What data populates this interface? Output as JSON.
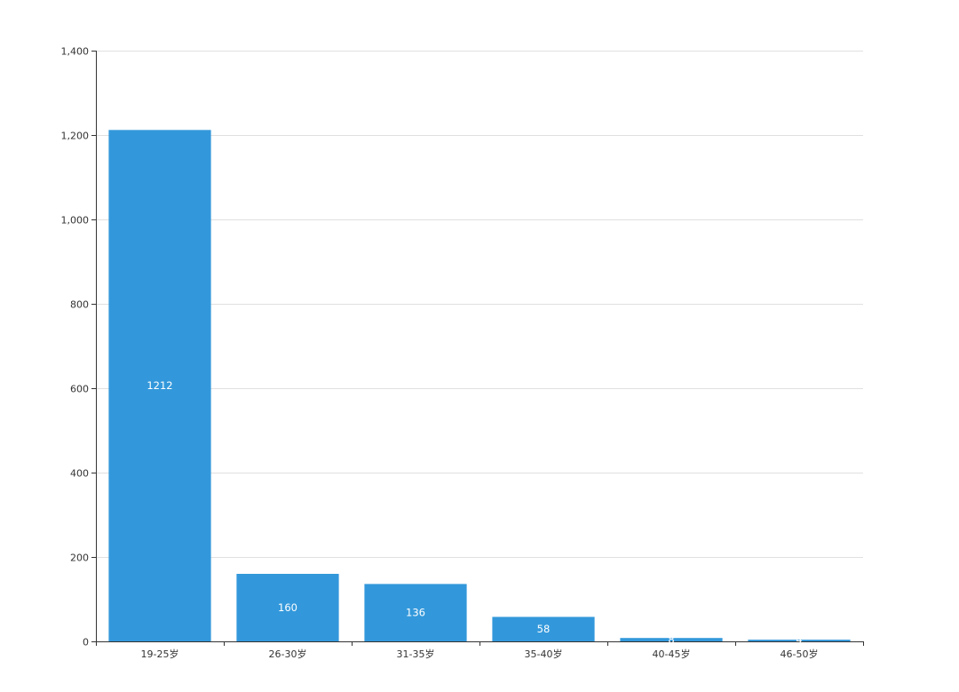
{
  "chart_data": {
    "type": "bar",
    "categories": [
      "19-25岁",
      "26-30岁",
      "31-35岁",
      "35-40岁",
      "40-45岁",
      "46-50岁"
    ],
    "values": [
      1212,
      160,
      136,
      58,
      8,
      4
    ],
    "y_ticks": [
      "0",
      "200",
      "400",
      "600",
      "800",
      "1,000",
      "1,200",
      "1,400"
    ],
    "title": "",
    "xlabel": "",
    "ylabel": "",
    "ylim": [
      0,
      1400
    ],
    "grid": true,
    "legend": "none"
  },
  "colors": {
    "bar": "#3398DB",
    "grid": "#e0e0e0",
    "axis": "#333333",
    "label": "#ffffff"
  }
}
